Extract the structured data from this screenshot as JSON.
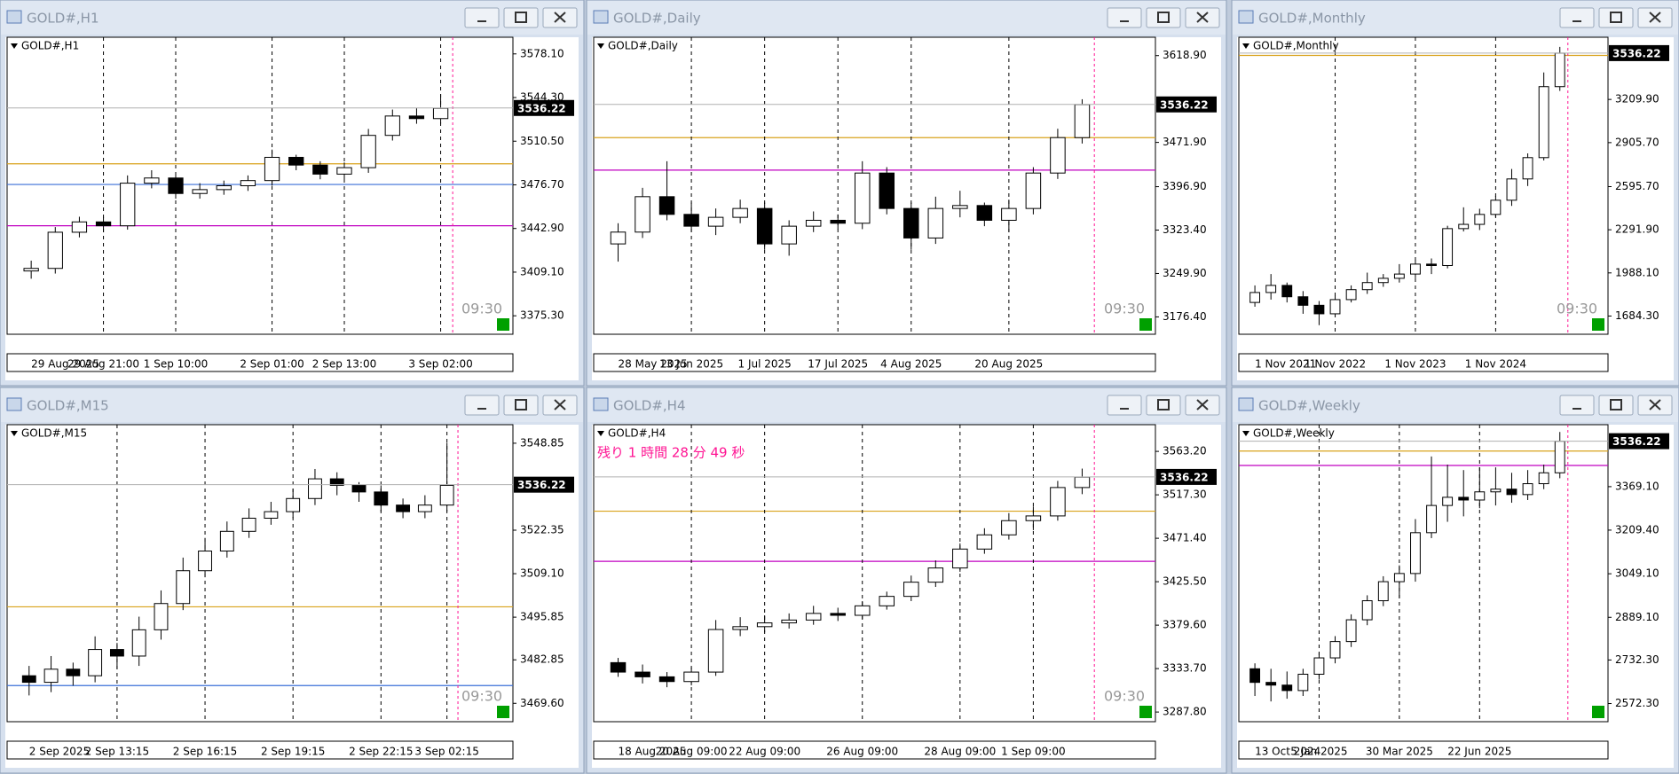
{
  "chart_data": [
    {
      "type": "candlestick",
      "title": "GOLD#,H1",
      "ylim": [
        3361,
        3591
      ],
      "yticks": [
        {
          "value": 3578.1,
          "label": "3578.10"
        },
        {
          "value": 3544.3,
          "label": "3544.30"
        },
        {
          "value": 3510.5,
          "label": "3510.50"
        },
        {
          "value": 3476.7,
          "label": "3476.70"
        },
        {
          "value": 3442.9,
          "label": "3442.90"
        },
        {
          "value": 3409.1,
          "label": "3409.10"
        },
        {
          "value": 3375.3,
          "label": "3375.30"
        }
      ],
      "xticks": [
        {
          "value": 0,
          "label": "29 Aug 2025"
        },
        {
          "value": 3,
          "label": "29 Aug 21:00"
        },
        {
          "value": 6,
          "label": "1 Sep 10:00"
        },
        {
          "value": 10,
          "label": "2 Sep 01:00"
        },
        {
          "value": 13,
          "label": "2 Sep 13:00"
        },
        {
          "value": 17,
          "label": "3 Sep 02:00"
        }
      ],
      "last_price": 3536.22,
      "countdown": "09:30",
      "levels": [
        {
          "value": 3493,
          "color": "#d9a21b"
        },
        {
          "value": 3445,
          "color": "#c000c0"
        },
        {
          "value": 3477,
          "color": "#3a6fd8"
        }
      ],
      "open": [
        3410,
        3412,
        3440,
        3448,
        3445,
        3478,
        3482,
        3470,
        3473,
        3476,
        3480,
        3498,
        3492,
        3485,
        3490,
        3515,
        3530,
        3528
      ],
      "high": [
        3418,
        3444,
        3452,
        3452,
        3484,
        3488,
        3485,
        3478,
        3480,
        3484,
        3504,
        3500,
        3495,
        3494,
        3520,
        3535,
        3536,
        3547
      ],
      "low": [
        3404,
        3408,
        3436,
        3440,
        3442,
        3474,
        3466,
        3466,
        3469,
        3472,
        3476,
        3488,
        3481,
        3480,
        3486,
        3511,
        3524,
        3524
      ],
      "close": [
        3412,
        3440,
        3448,
        3445,
        3478,
        3482,
        3470,
        3473,
        3476,
        3480,
        3498,
        3492,
        3485,
        3490,
        3515,
        3530,
        3528,
        3536
      ]
    },
    {
      "type": "candlestick",
      "title": "GOLD#,Daily",
      "ylim": [
        3147,
        3650
      ],
      "yticks": [
        {
          "value": 3618.9,
          "label": "3618.90"
        },
        {
          "value": 3471.9,
          "label": "3471.90"
        },
        {
          "value": 3396.9,
          "label": "3396.90"
        },
        {
          "value": 3323.4,
          "label": "3323.40"
        },
        {
          "value": 3249.9,
          "label": "3249.90"
        },
        {
          "value": 3176.4,
          "label": "3176.40"
        }
      ],
      "xticks": [
        {
          "value": 0,
          "label": "28 May 2025"
        },
        {
          "value": 3,
          "label": "13 Jun 2025"
        },
        {
          "value": 6,
          "label": "1 Jul 2025"
        },
        {
          "value": 9,
          "label": "17 Jul 2025"
        },
        {
          "value": 12,
          "label": "4 Aug 2025"
        },
        {
          "value": 16,
          "label": "20 Aug 2025"
        }
      ],
      "last_price": 3536.22,
      "countdown": "09:30",
      "levels": [
        {
          "value": 3480,
          "color": "#d9a21b"
        },
        {
          "value": 3425,
          "color": "#c000c0"
        }
      ],
      "open": [
        3300,
        3320,
        3380,
        3350,
        3330,
        3345,
        3360,
        3300,
        3330,
        3340,
        3335,
        3420,
        3360,
        3310,
        3360,
        3365,
        3340,
        3360,
        3420,
        3480
      ],
      "high": [
        3335,
        3395,
        3440,
        3370,
        3360,
        3375,
        3370,
        3340,
        3355,
        3350,
        3440,
        3430,
        3370,
        3380,
        3390,
        3370,
        3375,
        3430,
        3495,
        3545
      ],
      "low": [
        3270,
        3310,
        3340,
        3320,
        3315,
        3335,
        3290,
        3280,
        3320,
        3325,
        3325,
        3350,
        3290,
        3300,
        3345,
        3330,
        3320,
        3350,
        3410,
        3470
      ],
      "close": [
        3320,
        3380,
        3350,
        3330,
        3345,
        3360,
        3300,
        3330,
        3340,
        3335,
        3420,
        3360,
        3310,
        3360,
        3365,
        3340,
        3360,
        3420,
        3480,
        3536
      ]
    },
    {
      "type": "candlestick",
      "title": "GOLD#,Monthly",
      "ylim": [
        1556,
        3648
      ],
      "yticks": [
        {
          "value": 3209.9,
          "label": "3209.90"
        },
        {
          "value": 2905.7,
          "label": "2905.70"
        },
        {
          "value": 2595.7,
          "label": "2595.70"
        },
        {
          "value": 2291.9,
          "label": "2291.90"
        },
        {
          "value": 1988.1,
          "label": "1988.10"
        },
        {
          "value": 1684.3,
          "label": "1684.30"
        }
      ],
      "xticks": [
        {
          "value": 0,
          "label": "1 Nov 2021"
        },
        {
          "value": 5,
          "label": "1 Nov 2022"
        },
        {
          "value": 10,
          "label": "1 Nov 2023"
        },
        {
          "value": 15,
          "label": "1 Nov 2024"
        }
      ],
      "last_price": 3536.22,
      "countdown": "09:30",
      "levels": [
        {
          "value": 3520,
          "color": "#d9a21b"
        }
      ],
      "open": [
        1780,
        1850,
        1900,
        1820,
        1760,
        1700,
        1800,
        1870,
        1920,
        1950,
        1980,
        2050,
        2040,
        2300,
        2330,
        2400,
        2500,
        2650,
        2800,
        3300
      ],
      "high": [
        1900,
        1980,
        1920,
        1860,
        1790,
        1830,
        1900,
        1990,
        1980,
        2050,
        2080,
        2090,
        2320,
        2450,
        2440,
        2530,
        2720,
        2830,
        3400,
        3580
      ],
      "low": [
        1750,
        1800,
        1780,
        1700,
        1620,
        1680,
        1780,
        1840,
        1890,
        1920,
        1950,
        1980,
        2020,
        2280,
        2290,
        2380,
        2460,
        2600,
        2780,
        3270
      ],
      "close": [
        1850,
        1900,
        1820,
        1760,
        1700,
        1800,
        1870,
        1920,
        1950,
        1980,
        2050,
        2040,
        2300,
        2330,
        2400,
        2500,
        2650,
        2800,
        3300,
        3536
      ]
    },
    {
      "type": "candlestick",
      "title": "GOLD#,M15",
      "ylim": [
        3464,
        3554.5
      ],
      "yticks": [
        {
          "value": 3548.85,
          "label": "3548.85"
        },
        {
          "value": 3522.35,
          "label": "3522.35"
        },
        {
          "value": 3509.1,
          "label": "3509.10"
        },
        {
          "value": 3495.85,
          "label": "3495.85"
        },
        {
          "value": 3482.85,
          "label": "3482.85"
        },
        {
          "value": 3469.6,
          "label": "3469.60"
        }
      ],
      "xticks": [
        {
          "value": 0,
          "label": "2 Sep 2025"
        },
        {
          "value": 4,
          "label": "2 Sep 13:15"
        },
        {
          "value": 8,
          "label": "2 Sep 16:15"
        },
        {
          "value": 12,
          "label": "2 Sep 19:15"
        },
        {
          "value": 16,
          "label": "2 Sep 22:15"
        },
        {
          "value": 19,
          "label": "3 Sep 02:15"
        }
      ],
      "last_price": 3536.22,
      "countdown": "09:30",
      "levels": [
        {
          "value": 3499,
          "color": "#d9a21b"
        },
        {
          "value": 3475,
          "color": "#3a6fd8"
        }
      ],
      "open": [
        3478,
        3476,
        3480,
        3478,
        3486,
        3484,
        3492,
        3500,
        3510,
        3516,
        3522,
        3526,
        3528,
        3532,
        3538,
        3536,
        3534,
        3530,
        3528,
        3530
      ],
      "high": [
        3481,
        3484,
        3482,
        3490,
        3488,
        3496,
        3504,
        3514,
        3520,
        3525,
        3529,
        3531,
        3535,
        3541,
        3540,
        3537,
        3536,
        3532,
        3533,
        3549
      ],
      "low": [
        3472,
        3473,
        3475,
        3476,
        3480,
        3481,
        3489,
        3498,
        3508,
        3514,
        3520,
        3524,
        3526,
        3530,
        3533,
        3531,
        3528,
        3526,
        3526,
        3528
      ],
      "close": [
        3476,
        3480,
        3478,
        3486,
        3484,
        3492,
        3500,
        3510,
        3516,
        3522,
        3526,
        3528,
        3532,
        3538,
        3536,
        3534,
        3530,
        3528,
        3530,
        3536
      ]
    },
    {
      "type": "candlestick",
      "title": "GOLD#,H4",
      "timer": "残り 1 時間 28 分 49 秒",
      "ylim": [
        3277.6,
        3591.4
      ],
      "yticks": [
        {
          "value": 3563.2,
          "label": "3563.20"
        },
        {
          "value": 3517.3,
          "label": "3517.30"
        },
        {
          "value": 3471.4,
          "label": "3471.40"
        },
        {
          "value": 3425.5,
          "label": "3425.50"
        },
        {
          "value": 3379.6,
          "label": "3379.60"
        },
        {
          "value": 3333.7,
          "label": "3333.70"
        },
        {
          "value": 3287.8,
          "label": "3287.80"
        }
      ],
      "xticks": [
        {
          "value": 0,
          "label": "18 Aug 2025"
        },
        {
          "value": 3,
          "label": "20 Aug 09:00"
        },
        {
          "value": 6,
          "label": "22 Aug 09:00"
        },
        {
          "value": 10,
          "label": "26 Aug 09:00"
        },
        {
          "value": 14,
          "label": "28 Aug 09:00"
        },
        {
          "value": 17,
          "label": "1 Sep 09:00"
        }
      ],
      "last_price": 3536.22,
      "countdown": "09:30",
      "levels": [
        {
          "value": 3500,
          "color": "#d9a21b"
        },
        {
          "value": 3447,
          "color": "#c000c0"
        }
      ],
      "open": [
        3340,
        3330,
        3325,
        3320,
        3330,
        3375,
        3378,
        3382,
        3385,
        3392,
        3390,
        3400,
        3410,
        3425,
        3440,
        3460,
        3475,
        3490,
        3495,
        3525
      ],
      "high": [
        3345,
        3338,
        3330,
        3335,
        3385,
        3388,
        3390,
        3392,
        3400,
        3398,
        3405,
        3415,
        3432,
        3448,
        3466,
        3482,
        3498,
        3505,
        3532,
        3545
      ],
      "low": [
        3325,
        3318,
        3314,
        3316,
        3326,
        3368,
        3372,
        3376,
        3380,
        3384,
        3386,
        3396,
        3405,
        3420,
        3436,
        3455,
        3470,
        3480,
        3490,
        3518
      ],
      "close": [
        3330,
        3325,
        3320,
        3330,
        3375,
        3378,
        3382,
        3385,
        3392,
        3390,
        3400,
        3410,
        3425,
        3440,
        3460,
        3475,
        3490,
        3495,
        3525,
        3536
      ]
    },
    {
      "type": "candlestick",
      "title": "GOLD#,Weekly",
      "ylim": [
        2505.6,
        3596.8
      ],
      "yticks": [
        {
          "value": 3369.1,
          "label": "3369.10"
        },
        {
          "value": 3209.4,
          "label": "3209.40"
        },
        {
          "value": 3049.1,
          "label": "3049.10"
        },
        {
          "value": 2889.1,
          "label": "2889.10"
        },
        {
          "value": 2732.3,
          "label": "2732.30"
        },
        {
          "value": 2572.3,
          "label": "2572.30"
        }
      ],
      "xticks": [
        {
          "value": 0,
          "label": "13 Oct 2024"
        },
        {
          "value": 4,
          "label": "5 Jan 2025"
        },
        {
          "value": 9,
          "label": "30 Mar 2025"
        },
        {
          "value": 14,
          "label": "22 Jun 2025"
        }
      ],
      "last_price": 3536.22,
      "levels": [
        {
          "value": 3500,
          "color": "#d9a21b"
        },
        {
          "value": 3447,
          "color": "#c000c0"
        }
      ],
      "open": [
        2700,
        2650,
        2640,
        2620,
        2680,
        2740,
        2800,
        2880,
        2950,
        3020,
        3050,
        3200,
        3300,
        3330,
        3320,
        3350,
        3360,
        3340,
        3380,
        3420
      ],
      "high": [
        2720,
        2700,
        2690,
        2700,
        2760,
        2820,
        2900,
        2970,
        3040,
        3080,
        3250,
        3480,
        3450,
        3430,
        3440,
        3440,
        3420,
        3430,
        3450,
        3570
      ],
      "low": [
        2600,
        2580,
        2590,
        2600,
        2660,
        2720,
        2780,
        2860,
        2930,
        2960,
        3020,
        3180,
        3240,
        3260,
        3290,
        3300,
        3310,
        3320,
        3360,
        3400
      ],
      "close": [
        2650,
        2640,
        2620,
        2680,
        2740,
        2800,
        2880,
        2950,
        3020,
        3050,
        3200,
        3300,
        3330,
        3320,
        3350,
        3360,
        3340,
        3380,
        3420,
        3536
      ]
    }
  ]
}
